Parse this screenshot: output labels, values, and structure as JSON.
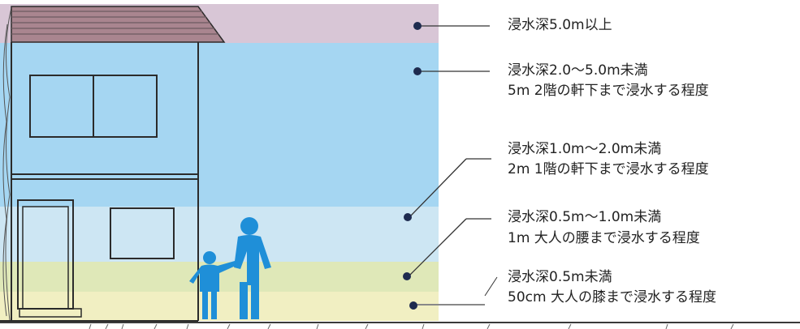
{
  "colors": {
    "band_over5": "#d8c6d6",
    "band_2to5": "#a5d6f2",
    "band_1to2": "#a5d6f2",
    "band_05to1": "#cde6f3",
    "band_under05_top": "#dfe8b8",
    "band_under05_bottom": "#f1efc2",
    "figure": "#1f8fd8",
    "dot": "#1e2b4f",
    "roof": "#a9858f"
  },
  "levels": [
    {
      "label": "浸水深5.0m以上",
      "note": ""
    },
    {
      "label": "浸水深2.0～5.0m未満",
      "note": "5m 2階の軒下まで浸水する程度"
    },
    {
      "label": "浸水深1.0m～2.0m未満",
      "note": "2m 1階の軒下まで浸水する程度"
    },
    {
      "label": "浸水深0.5m～1.0m未満",
      "note": "1m 大人の腰まで浸水する程度"
    },
    {
      "label": "浸水深0.5m未満",
      "note": "50cm 大人の膝まで浸水する程度"
    }
  ]
}
